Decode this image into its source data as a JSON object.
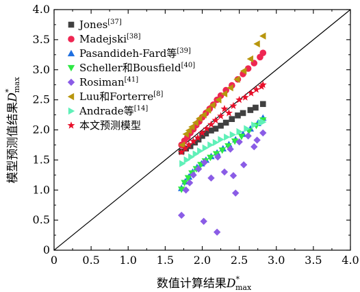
{
  "chart_data": {
    "type": "scatter",
    "title": "",
    "xlabel": "数值计算结果D*max",
    "xlabel_parts": {
      "text": "数值计算结果",
      "var": "D",
      "sup": "*",
      "sub": "max"
    },
    "ylabel": "模型预测值结果D*max",
    "ylabel_parts": {
      "text": "模型预测值结果",
      "var": "D",
      "sup": "*",
      "sub": "max"
    },
    "xlim": [
      0,
      4.0
    ],
    "ylim": [
      0,
      4.0
    ],
    "xticks": [
      "0",
      "0.5",
      "1.0",
      "1.5",
      "2.0",
      "2.5",
      "3.0",
      "3.5",
      "4.0"
    ],
    "yticks": [
      "0",
      "0.5",
      "1.0",
      "1.5",
      "2.0",
      "2.5",
      "3.0",
      "3.5",
      "4.0"
    ],
    "tick_values": [
      0,
      0.5,
      1.0,
      1.5,
      2.0,
      2.5,
      3.0,
      3.5,
      4.0
    ],
    "reference_line": {
      "from": [
        0,
        0
      ],
      "to": [
        4.0,
        4.0
      ]
    },
    "grid": false,
    "legend_position": "top-left",
    "series": [
      {
        "name": "Jones",
        "ref": "[37]",
        "marker": "square",
        "color": "#404040",
        "points": [
          [
            1.72,
            1.64
          ],
          [
            1.78,
            1.69
          ],
          [
            1.84,
            1.73
          ],
          [
            1.9,
            1.79
          ],
          [
            1.95,
            1.84
          ],
          [
            2.0,
            1.9
          ],
          [
            2.05,
            1.94
          ],
          [
            2.12,
            1.99
          ],
          [
            2.18,
            2.02
          ],
          [
            2.25,
            2.07
          ],
          [
            2.32,
            2.12
          ],
          [
            2.4,
            2.18
          ],
          [
            2.48,
            2.24
          ],
          [
            2.55,
            2.28
          ],
          [
            2.65,
            2.33
          ],
          [
            2.72,
            2.37
          ],
          [
            2.82,
            2.43
          ]
        ]
      },
      {
        "name": "Madejski",
        "ref": "[38]",
        "marker": "circle",
        "color": "#ee2652",
        "points": [
          [
            1.72,
            1.75
          ],
          [
            1.76,
            1.82
          ],
          [
            1.8,
            1.88
          ],
          [
            1.84,
            1.95
          ],
          [
            1.88,
            2.01
          ],
          [
            1.92,
            2.08
          ],
          [
            1.96,
            2.14
          ],
          [
            2.0,
            2.21
          ],
          [
            2.05,
            2.28
          ],
          [
            2.1,
            2.35
          ],
          [
            2.15,
            2.42
          ],
          [
            2.2,
            2.5
          ],
          [
            2.25,
            2.57
          ],
          [
            2.32,
            2.66
          ],
          [
            2.4,
            2.74
          ],
          [
            2.48,
            2.84
          ],
          [
            2.55,
            2.93
          ],
          [
            2.62,
            3.02
          ],
          [
            2.7,
            3.11
          ],
          [
            2.78,
            3.21
          ],
          [
            2.82,
            3.28
          ]
        ]
      },
      {
        "name": "Pasandideh-Fard等",
        "ref": "[39]",
        "marker": "triangle-up",
        "color": "#1f6fe0",
        "points": [
          [
            1.72,
            1.03
          ],
          [
            1.77,
            1.14
          ],
          [
            1.82,
            1.22
          ],
          [
            1.87,
            1.3
          ],
          [
            1.93,
            1.38
          ],
          [
            1.99,
            1.44
          ],
          [
            2.05,
            1.5
          ],
          [
            2.12,
            1.56
          ],
          [
            2.2,
            1.62
          ],
          [
            2.28,
            1.69
          ],
          [
            2.36,
            1.76
          ],
          [
            2.45,
            1.84
          ],
          [
            2.55,
            1.93
          ],
          [
            2.65,
            2.02
          ],
          [
            2.75,
            2.11
          ],
          [
            2.82,
            2.2
          ]
        ]
      },
      {
        "name": "Scheller和Bousfield",
        "ref": "[40]",
        "marker": "triangle-down",
        "color": "#2ee845",
        "points": [
          [
            1.72,
            1.01
          ],
          [
            1.76,
            1.12
          ],
          [
            1.81,
            1.2
          ],
          [
            1.86,
            1.28
          ],
          [
            1.92,
            1.35
          ],
          [
            1.98,
            1.42
          ],
          [
            2.04,
            1.48
          ],
          [
            2.11,
            1.54
          ],
          [
            2.19,
            1.6
          ],
          [
            2.27,
            1.66
          ],
          [
            2.35,
            1.73
          ],
          [
            2.44,
            1.81
          ],
          [
            2.53,
            1.89
          ],
          [
            2.63,
            1.98
          ],
          [
            2.73,
            2.07
          ],
          [
            2.82,
            2.16
          ]
        ]
      },
      {
        "name": "Rosiman",
        "ref": "[41]",
        "marker": "diamond",
        "color": "#8a5ce6",
        "points": [
          [
            1.72,
            0.58
          ],
          [
            1.78,
            1.0
          ],
          [
            1.83,
            1.12
          ],
          [
            1.88,
            1.25
          ],
          [
            1.95,
            1.35
          ],
          [
            2.03,
            1.46
          ],
          [
            2.02,
            0.48
          ],
          [
            2.12,
            1.2
          ],
          [
            2.2,
            0.3
          ],
          [
            2.21,
            1.55
          ],
          [
            2.3,
            1.3
          ],
          [
            2.38,
            1.68
          ],
          [
            2.42,
            1.24
          ],
          [
            2.45,
            0.95
          ],
          [
            2.5,
            1.8
          ],
          [
            2.56,
            1.42
          ],
          [
            2.62,
            1.9
          ],
          [
            2.7,
            1.72
          ],
          [
            2.74,
            1.83
          ],
          [
            2.82,
            1.95
          ]
        ]
      },
      {
        "name": "Luu和Forterre",
        "ref": "[8]",
        "marker": "triangle-left",
        "color": "#b8960e",
        "points": [
          [
            1.73,
            1.75
          ],
          [
            1.78,
            1.93
          ],
          [
            1.82,
            1.99
          ],
          [
            1.86,
            2.05
          ],
          [
            1.91,
            2.12
          ],
          [
            1.96,
            2.19
          ],
          [
            2.02,
            2.25
          ],
          [
            2.08,
            2.33
          ],
          [
            2.14,
            2.41
          ],
          [
            2.22,
            2.5
          ],
          [
            2.3,
            2.6
          ],
          [
            2.38,
            2.7
          ],
          [
            2.47,
            2.84
          ],
          [
            2.56,
            2.98
          ],
          [
            2.65,
            3.18
          ],
          [
            2.74,
            3.43
          ],
          [
            2.82,
            3.56
          ]
        ]
      },
      {
        "name": "Andrade等",
        "ref": "[14]",
        "marker": "triangle-right",
        "color": "#5ff0b8",
        "points": [
          [
            1.73,
            1.44
          ],
          [
            1.79,
            1.5
          ],
          [
            1.85,
            1.55
          ],
          [
            1.91,
            1.6
          ],
          [
            1.97,
            1.65
          ],
          [
            2.04,
            1.7
          ],
          [
            2.11,
            1.75
          ],
          [
            2.18,
            1.79
          ],
          [
            2.25,
            1.84
          ],
          [
            2.33,
            1.88
          ],
          [
            2.41,
            1.92
          ],
          [
            2.5,
            1.97
          ],
          [
            2.6,
            2.02
          ],
          [
            2.7,
            2.08
          ],
          [
            2.79,
            2.12
          ],
          [
            2.82,
            2.13
          ]
        ]
      },
      {
        "name": "本文预测模型",
        "ref": "",
        "marker": "star",
        "color": "#e8102a",
        "points": [
          [
            1.72,
            1.63
          ],
          [
            1.77,
            1.69
          ],
          [
            1.82,
            1.75
          ],
          [
            1.88,
            1.81
          ],
          [
            1.94,
            1.87
          ],
          [
            2.0,
            1.95
          ],
          [
            2.06,
            2.02
          ],
          [
            2.12,
            2.09
          ],
          [
            2.18,
            2.16
          ],
          [
            2.25,
            2.23
          ],
          [
            2.3,
            2.35
          ],
          [
            2.36,
            2.28
          ],
          [
            2.42,
            2.4
          ],
          [
            2.5,
            2.5
          ],
          [
            2.58,
            2.54
          ],
          [
            2.66,
            2.61
          ],
          [
            2.73,
            2.67
          ],
          [
            2.8,
            2.72
          ],
          [
            2.82,
            2.75
          ]
        ]
      }
    ]
  }
}
